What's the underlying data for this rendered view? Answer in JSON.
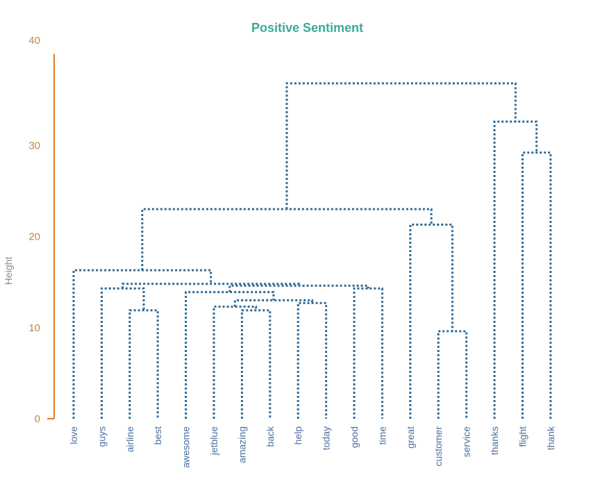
{
  "chart_data": {
    "type": "dendrogram",
    "title": "Positive Sentiment",
    "ylabel": "Height",
    "xlabel": "",
    "ylim": [
      0,
      40
    ],
    "y_ticks": [
      0,
      10,
      20,
      30,
      40
    ],
    "leaves": [
      "love",
      "guys",
      "airline",
      "best",
      "awesome",
      "jetblue",
      "amazing",
      "back",
      "help",
      "today",
      "good",
      "time",
      "great",
      "customer",
      "service",
      "thanks",
      "flight",
      "thank"
    ],
    "merges": [
      {
        "left": "airline",
        "right": "best",
        "height": 11.9
      },
      {
        "left": "amazing",
        "right": "back",
        "height": 11.9
      },
      {
        "left": "jetblue",
        "right": "(amazing, back)",
        "height": 12.3
      },
      {
        "left": "help",
        "right": "today",
        "height": 12.7
      },
      {
        "left": "(jetblue, amazing, back)",
        "right": "(help, today)",
        "height": 13.0
      },
      {
        "left": "awesome",
        "right": "(jetblue, amazing, back, help, today)",
        "height": 13.9
      },
      {
        "left": "guys",
        "right": "(airline, best)",
        "height": 14.3
      },
      {
        "left": "good",
        "right": "time",
        "height": 14.3
      },
      {
        "left": "(awesome, ...)",
        "right": "(good, time)",
        "height": 14.6
      },
      {
        "left": "(guys, airline, best)",
        "right": "(awesome, ..., time)",
        "height": 14.8
      },
      {
        "left": "love",
        "right": "(guys, ..., time)",
        "height": 16.3
      },
      {
        "left": "customer",
        "right": "service",
        "height": 9.6
      },
      {
        "left": "great",
        "right": "(customer, service)",
        "height": 21.3
      },
      {
        "left": "(love, ...)",
        "right": "(great, customer, service)",
        "height": 23.0
      },
      {
        "left": "flight",
        "right": "thank",
        "height": 29.2
      },
      {
        "left": "thanks",
        "right": "(flight, thank)",
        "height": 32.6
      },
      {
        "left": "(love, ..., service)",
        "right": "(thanks, flight, thank)",
        "height": 36.8
      }
    ],
    "colors": {
      "title": "#3aaa9a",
      "axis": "#e07b1f",
      "links": "#2e6a96",
      "leaf_labels": "#4a6fa0",
      "tick_labels": "#b98a3c"
    }
  }
}
